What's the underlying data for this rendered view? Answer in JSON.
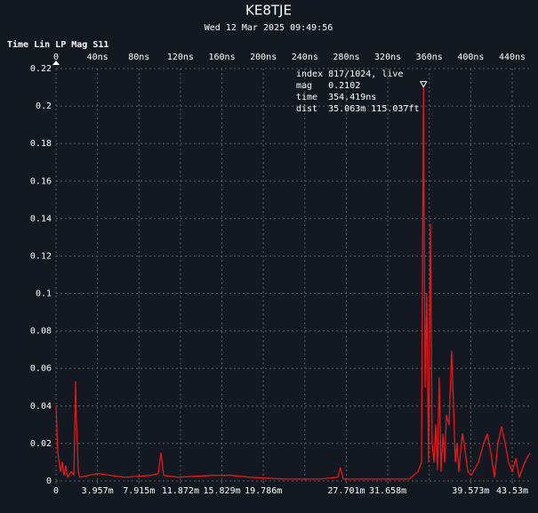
{
  "chart_data": {
    "type": "line",
    "title": "KE8TJE",
    "subtitle": "Wed 12 Mar 2025 09:49:56",
    "label": "Time Lin LP Mag S11",
    "xlim": [
      0,
      458
    ],
    "xticks": [
      0,
      {
        "value": 40,
        "label": "40ns"
      },
      {
        "value": 80,
        "label": "80ns"
      },
      {
        "value": 120,
        "label": "120ns"
      },
      {
        "value": 160,
        "label": "160ns"
      },
      {
        "value": 200,
        "label": "200ns"
      },
      {
        "value": 240,
        "label": "240ns"
      },
      {
        "value": 280,
        "label": "280ns"
      },
      {
        "value": 320,
        "label": "320ns"
      },
      {
        "value": 360,
        "label": "360ns"
      },
      {
        "value": 400,
        "label": "400ns"
      },
      {
        "value": 440,
        "label": "440ns"
      }
    ],
    "x2lim": [
      0,
      45.31
    ],
    "x2ticks": [
      0,
      {
        "value": 3.957,
        "label": "3.957m"
      },
      {
        "value": 7.915,
        "label": "7.915m"
      },
      {
        "value": 11.872,
        "label": "11.872m"
      },
      {
        "value": 15.829,
        "label": "15.829m"
      },
      {
        "value": 19.786,
        "label": "19.786m"
      },
      {
        "value": 27.701,
        "label": "27.701m"
      },
      {
        "value": 31.658,
        "label": "31.658m"
      },
      {
        "value": 39.573,
        "label": "39.573m"
      },
      {
        "value": 43.53,
        "label": "43.53m"
      }
    ],
    "ylim": [
      0,
      0.22
    ],
    "yticks": [
      0,
      0.02,
      0.04,
      0.06,
      0.08,
      0.1,
      0.12,
      0.14,
      0.16,
      0.18,
      0.2,
      0.22
    ],
    "grid": true,
    "color": "#e8161a",
    "x": [
      0,
      1.7,
      4.3,
      6.0,
      7.7,
      9.4,
      11.1,
      14.6,
      17.2,
      18.9,
      19.7,
      20.6,
      21.4,
      23.2,
      40.3,
      66.0,
      91.8,
      98.6,
      101.2,
      103.8,
      117.5,
      151.8,
      169.0,
      186.1,
      220.4,
      254.7,
      271.8,
      274.4,
      277.0,
      306.2,
      340.5,
      349.1,
      352.5,
      354.4,
      355.9,
      357.6,
      359.3,
      361.1,
      362.8,
      364.5,
      366.2,
      367.9,
      369.6,
      371.4,
      373.1,
      374.8,
      376.5,
      379.1,
      381.6,
      383.4,
      385.1,
      386.8,
      388.5,
      391.9,
      393.7,
      397.1,
      400.5,
      407.4,
      412.5,
      416.0,
      419.4,
      422.8,
      426.2,
      429.7,
      433.1,
      436.5,
      440.0,
      443.4,
      446.8,
      452.0,
      457.1
    ],
    "values": [
      0.04,
      0.015,
      0.005,
      0.01,
      0.003,
      0.008,
      0.002,
      0.005,
      0.003,
      0.053,
      0.03,
      0.02,
      0.005,
      0.002,
      0.004,
      0.002,
      0.003,
      0.004,
      0.015,
      0.003,
      0.002,
      0.003,
      0.003,
      0.002,
      0.001,
      0.001,
      0.002,
      0.007,
      0.001,
      0.001,
      0.001,
      0.005,
      0.01,
      0.21,
      0.05,
      0.1,
      0.01,
      0.137,
      0.02,
      0.01,
      0.03,
      0.006,
      0.055,
      0.005,
      0.025,
      0.01,
      0.035,
      0.03,
      0.069,
      0.04,
      0.01,
      0.02,
      0.005,
      0.025,
      0.02,
      0.005,
      0.003,
      0.01,
      0.02,
      0.025,
      0.015,
      0.002,
      0.02,
      0.029,
      0.02,
      0.01,
      0.005,
      0.012,
      0.002,
      0.01,
      0.015
    ],
    "marker": {
      "x": 354.419,
      "y": 0.2102,
      "lines": [
        "index 817/1024, live",
        "mag   0.2102",
        "time  354.419ns",
        "dist  35.063m 115.037ft"
      ]
    }
  }
}
